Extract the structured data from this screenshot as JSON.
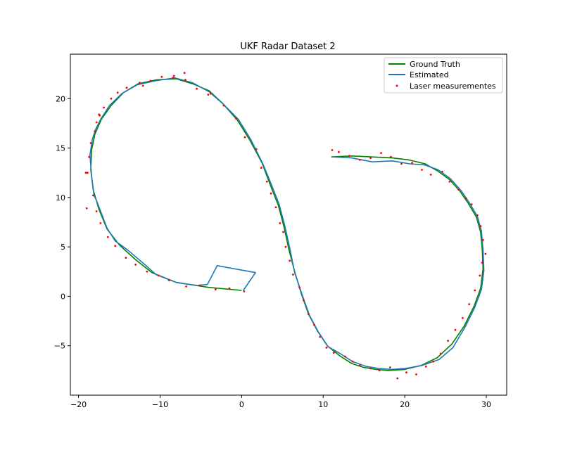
{
  "chart_data": {
    "type": "line",
    "title": "UKF Radar Dataset 2",
    "xlabel": "",
    "ylabel": "",
    "xlim": [
      -21,
      32.5
    ],
    "ylim": [
      -10,
      24.5
    ],
    "xticks": [
      -20,
      -10,
      0,
      10,
      20,
      30
    ],
    "yticks": [
      -5,
      0,
      5,
      10,
      15,
      20
    ],
    "ytick_labels": [
      "−5",
      "0",
      "5",
      "10",
      "15",
      "20"
    ],
    "xtick_labels": [
      "−20",
      "−10",
      "0",
      "10",
      "20",
      "30"
    ],
    "grid": false,
    "legend_position": "top-right",
    "series": [
      {
        "name": "Ground Truth",
        "kind": "line",
        "color": "#008000",
        "x": [
          0,
          -4,
          -8,
          -11,
          -13,
          -15,
          -16.5,
          -17.5,
          -18.2,
          -18.5,
          -18.4,
          -18,
          -17.2,
          -16,
          -14.5,
          -12.7,
          -10.5,
          -8,
          -6,
          -4,
          -2.3,
          -0.5,
          1,
          2.5,
          3.5,
          4.5,
          5.2,
          5.8,
          6.5,
          7.3,
          8.2,
          9.3,
          10.5,
          12,
          13.5,
          15,
          16.5,
          18,
          20,
          22,
          24,
          25.8,
          27.3,
          28.5,
          29.3,
          29.6,
          29.5,
          29.3,
          28.8,
          27.8,
          26.8,
          25.5,
          24,
          22.5,
          20.5,
          18.5,
          16,
          13.5,
          11
        ],
        "y": [
          0.6,
          0.9,
          1.4,
          2.4,
          3.7,
          5.2,
          6.8,
          8.8,
          10.8,
          12.8,
          14.8,
          16.4,
          17.9,
          19.3,
          20.6,
          21.5,
          21.9,
          22,
          21.5,
          20.8,
          19.5,
          17.8,
          15.8,
          13.5,
          11.3,
          9.2,
          7,
          4.7,
          2.5,
          0.3,
          -1.8,
          -3.5,
          -5,
          -6,
          -6.8,
          -7.2,
          -7.4,
          -7.5,
          -7.4,
          -7,
          -6.2,
          -4.8,
          -3,
          -1,
          0.8,
          2.8,
          4.8,
          6.5,
          8,
          9.4,
          10.6,
          11.8,
          12.7,
          13.4,
          13.8,
          14,
          14.1,
          14.2,
          14.1
        ]
      },
      {
        "name": "Estimated",
        "kind": "line",
        "color": "#1f77b4",
        "x": [
          0.2,
          1.7,
          -3,
          -4.2,
          -5.5,
          -8,
          -10.5,
          -12,
          -14,
          -15.5,
          -16.5,
          -17.2,
          -17.8,
          -18.1,
          -18.4,
          -18.6,
          -18.3,
          -17.9,
          -17.3,
          -16.2,
          -14.7,
          -12.8,
          -10.6,
          -8.2,
          -6,
          -4,
          -2.2,
          -0.4,
          1.1,
          2.6,
          3.6,
          4.6,
          5.3,
          5.9,
          6.5,
          7.4,
          8.3,
          9.4,
          10.6,
          12.1,
          13.6,
          15.3,
          16.8,
          18.3,
          20.1,
          22.1,
          24.2,
          25.9,
          27.4,
          28.6,
          29.4,
          29.7,
          29.6,
          29.4,
          28.9,
          27.9,
          26.9,
          25.6,
          24.1,
          22.4,
          20.6,
          18.5,
          16,
          13.5,
          11.2
        ],
        "y": [
          0.6,
          2.4,
          3.1,
          1.2,
          1.1,
          1.4,
          2.2,
          3.3,
          4.7,
          5.6,
          6.9,
          8.4,
          9.7,
          10.2,
          12.2,
          14.3,
          15.9,
          16.9,
          17.9,
          19.3,
          20.5,
          21.4,
          21.8,
          22.1,
          21.6,
          20.7,
          19.4,
          17.9,
          15.9,
          13.4,
          11.4,
          9.3,
          7.1,
          4.9,
          2.4,
          0.2,
          -1.9,
          -3.6,
          -5.1,
          -5.8,
          -6.6,
          -7.1,
          -7.3,
          -7.4,
          -7.3,
          -7.0,
          -6.4,
          -5.2,
          -3.1,
          -1.1,
          0.7,
          2.6,
          4.7,
          6.6,
          8.1,
          9.5,
          10.7,
          11.9,
          12.8,
          13.3,
          13.4,
          13.7,
          13.6,
          14.0,
          14.1
        ]
      },
      {
        "name": "Laser measurementes",
        "kind": "scatter",
        "color": "#ff0000",
        "x": [
          0.3,
          -1.5,
          -3.2,
          -5.1,
          -6.8,
          -8.9,
          -10.2,
          -11.6,
          -13,
          -14.2,
          -15.5,
          -16.4,
          -17.3,
          -17.8,
          -18.2,
          -18.9,
          -18.7,
          -18.5,
          -18,
          -17.8,
          -17.4,
          -16.9,
          -16,
          -15.2,
          -14.1,
          -12.5,
          -11.2,
          -9.8,
          -8.3,
          -6.9,
          -5.5,
          -3.8,
          -2.2,
          -0.7,
          0.4,
          1.8,
          2.4,
          3.1,
          3.6,
          4.2,
          4.7,
          5.1,
          5.4,
          5.9,
          6.3,
          7.1,
          7.6,
          8.2,
          8.9,
          9.6,
          10.4,
          11.3,
          12.7,
          13.6,
          14.5,
          15.8,
          16.9,
          18.2,
          19.1,
          20.2,
          21.4,
          22.6,
          23.5,
          24.4,
          25.3,
          26.2,
          27.1,
          27.9,
          28.6,
          29.2,
          29.5,
          29.9,
          29.6,
          29.3,
          28.9,
          28.2,
          27.5,
          26.6,
          25.5,
          24.6,
          23.2,
          22.1,
          20.9,
          19.6,
          18.3,
          17.1,
          15.8,
          14.5,
          13.2,
          11.9,
          11.1,
          -19.1,
          -19,
          -17.5,
          -8.4,
          -7,
          -12.1,
          -4.1
        ],
        "y": [
          0.5,
          0.8,
          0.7,
          1.1,
          1.0,
          1.6,
          2.1,
          2.5,
          3.2,
          3.9,
          5.1,
          6.0,
          7.4,
          8.6,
          10.2,
          12.5,
          14.1,
          15.5,
          16.7,
          17.6,
          18.3,
          19.1,
          20.0,
          20.6,
          21.1,
          21.6,
          21.8,
          22.2,
          22.3,
          21.9,
          21.0,
          20.5,
          19.3,
          18.0,
          16.1,
          14.9,
          13.0,
          11.6,
          10.4,
          9.0,
          7.4,
          6.5,
          5.0,
          3.6,
          2.2,
          0.9,
          -0.4,
          -1.8,
          -2.9,
          -4.1,
          -5.2,
          -5.7,
          -6.1,
          -6.6,
          -7.0,
          -7.3,
          -7.5,
          -7.2,
          -8.3,
          -7.7,
          -7.9,
          -7.1,
          -6.6,
          -5.8,
          -4.5,
          -3.4,
          -2.2,
          -0.8,
          0.6,
          2.1,
          3.4,
          4.3,
          5.7,
          7.1,
          8.2,
          9.3,
          9.9,
          10.8,
          11.6,
          12.6,
          12.3,
          12.8,
          13.5,
          13.4,
          14.1,
          14.5,
          14.0,
          13.8,
          14.2,
          14.6,
          14.8,
          12.5,
          8.9,
          18.4,
          22.1,
          22.6,
          21.3,
          20.4
        ]
      }
    ]
  }
}
